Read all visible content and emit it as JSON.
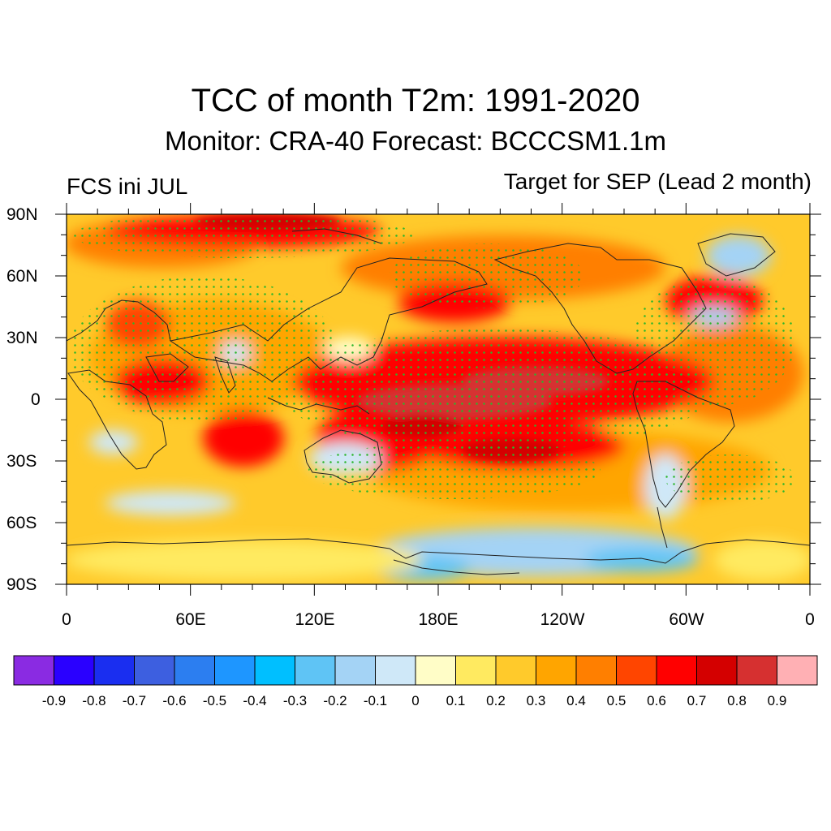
{
  "header": {
    "title": "TCC of month T2m: 1991-2020",
    "subtitle": "Monitor: CRA-40   Forecast: BCCCSM1.1m",
    "left_label": "FCS ini JUL",
    "right_label": "Target for SEP (Lead 2 month)"
  },
  "map": {
    "projection": "equirectangular",
    "lat_range": [
      -90,
      90
    ],
    "lon_range": [
      0,
      360
    ],
    "lat_ticks": [
      "90N",
      "60N",
      "30N",
      "0",
      "30S",
      "60S",
      "90S"
    ],
    "lon_ticks": [
      "0",
      "60E",
      "120E",
      "180E",
      "120W",
      "60W",
      "0"
    ],
    "stipple_color": "#2bb52b",
    "coastline_color": "#222222"
  },
  "colorbar": {
    "colors": [
      "#8a2be2",
      "#2a00ff",
      "#1a2ef0",
      "#3d5fe0",
      "#2c7ef0",
      "#1e96ff",
      "#00bfff",
      "#5fc4f5",
      "#a4d3f5",
      "#cfe8f8",
      "#fffdc7",
      "#ffea60",
      "#ffca2b",
      "#ffa500",
      "#ff7f00",
      "#ff4500",
      "#ff0000",
      "#d40000",
      "#d63030",
      "#ffb0b4"
    ],
    "labels": [
      "-0.9",
      "-0.8",
      "-0.7",
      "-0.6",
      "-0.5",
      "-0.4",
      "-0.3",
      "-0.2",
      "-0.1",
      "0",
      "0.1",
      "0.2",
      "0.3",
      "0.4",
      "0.5",
      "0.6",
      "0.7",
      "0.8",
      "0.9"
    ]
  }
}
